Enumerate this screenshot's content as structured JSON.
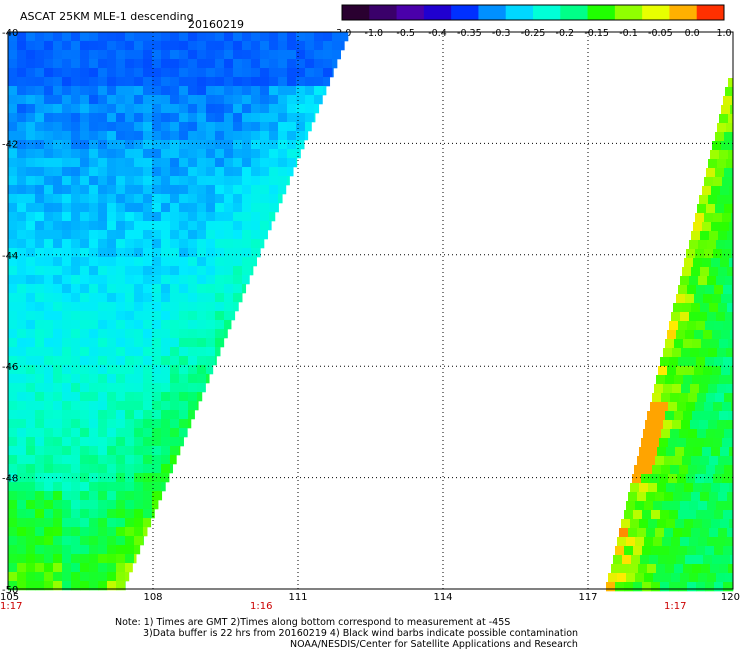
{
  "header": {
    "title": "ASCAT 25KM MLE-1 descending",
    "date": "20160219"
  },
  "colorbar": {
    "ticks": [
      "-3.0",
      "-1.0",
      "-0.5",
      "-0.4",
      "-0.35",
      "-0.3",
      "-0.25",
      "-0.2",
      "-0.15",
      "-0.1",
      "-0.05",
      "0.0",
      "1.0"
    ],
    "colors": [
      "#2a0030",
      "#3a006a",
      "#4a00aa",
      "#2000d0",
      "#0030ff",
      "#0090ff",
      "#00d8ff",
      "#00ffd8",
      "#00ff88",
      "#20ff00",
      "#90ff00",
      "#e8ff00",
      "#ffb000",
      "#ff3000"
    ]
  },
  "map": {
    "lon_range": [
      105,
      120
    ],
    "lat_range": [
      -50,
      -40
    ],
    "x_ticks": [
      "105",
      "108",
      "111",
      "114",
      "117",
      "120"
    ],
    "y_ticks": [
      "-40",
      "-42",
      "-44",
      "-46",
      "-48",
      "-50"
    ],
    "times": [
      "1:17",
      "1:16",
      "1:17"
    ],
    "grid": true
  },
  "notes": {
    "line1": "Note: 1) Times are GMT 2)Times along bottom correspond to measurement at -45S",
    "line2": "3)Data buffer is 22 hrs from 20160219 4) Black wind barbs indicate possible contamination",
    "line3": "NOAA/NESDIS/Center for Satellite Applications and Research"
  }
}
